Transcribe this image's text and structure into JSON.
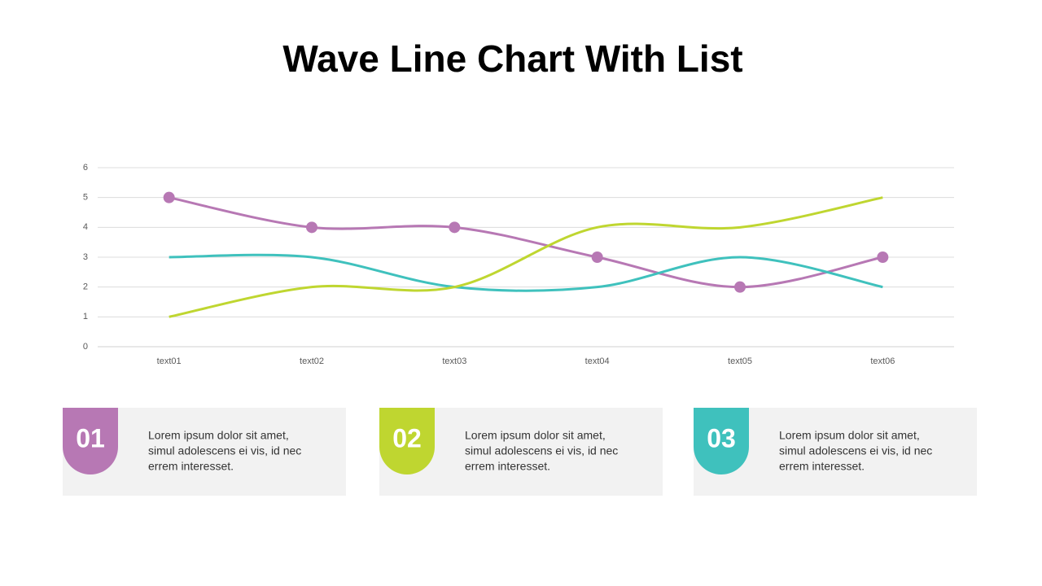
{
  "chart_data": {
    "type": "line",
    "title": "Wave Line Chart With List",
    "categories": [
      "text01",
      "text02",
      "text03",
      "text04",
      "text05",
      "text06"
    ],
    "series": [
      {
        "color": "#b778b4",
        "values": [
          5,
          4,
          4,
          3,
          2,
          3
        ],
        "markers": true
      },
      {
        "color": "#3fc1bd",
        "values": [
          3,
          3,
          2,
          2,
          3,
          2
        ],
        "markers": false
      },
      {
        "color": "#bfd630",
        "values": [
          1,
          2,
          2,
          4,
          4,
          5
        ],
        "markers": false
      }
    ],
    "ylim": [
      0,
      6
    ],
    "yticks": [
      0,
      1,
      2,
      3,
      4,
      5,
      6
    ],
    "grid": true,
    "smooth": true
  },
  "cards": [
    {
      "number": "01",
      "color": "#b778b4",
      "lines": [
        "Lorem ipsum dolor sit amet,",
        "simul adolescens ei vis, id nec",
        "errem interesset."
      ]
    },
    {
      "number": "02",
      "color": "#bfd630",
      "lines": [
        "Lorem ipsum dolor sit amet,",
        "simul adolescens ei vis, id nec",
        "errem interesset."
      ]
    },
    {
      "number": "03",
      "color": "#3fc1bd",
      "lines": [
        "Lorem ipsum dolor sit amet,",
        "simul adolescens ei vis, id nec",
        "errem interesset."
      ]
    }
  ]
}
